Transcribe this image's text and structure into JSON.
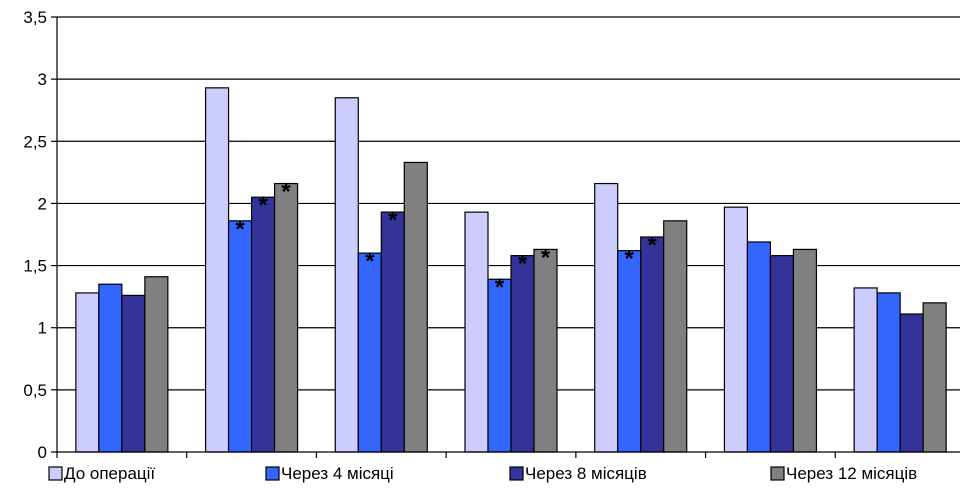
{
  "chart_data": {
    "type": "bar",
    "title": "",
    "xlabel": "",
    "ylabel": "",
    "ylim": [
      0,
      3.5
    ],
    "y_ticks": [
      "0",
      "0,5",
      "1",
      "1,5",
      "2",
      "2,5",
      "3",
      "3,5"
    ],
    "y_tick_values": [
      0,
      0.5,
      1,
      1.5,
      2,
      2.5,
      3,
      3.5
    ],
    "grid": "horizontal",
    "legend_position": "bottom",
    "categories": [
      "",
      "",
      "",
      "",
      "",
      "",
      ""
    ],
    "series": [
      {
        "name": "До операції",
        "color": "#CCCCFF",
        "values": [
          1.28,
          2.93,
          2.85,
          1.93,
          2.16,
          1.97,
          1.32
        ]
      },
      {
        "name": "Через 4 місяці",
        "color": "#3366FF",
        "values": [
          1.35,
          1.86,
          1.6,
          1.39,
          1.62,
          1.69,
          1.28
        ]
      },
      {
        "name": "Через 8 місяців",
        "color": "#333399",
        "values": [
          1.26,
          2.05,
          1.93,
          1.58,
          1.73,
          1.58,
          1.11
        ]
      },
      {
        "name": "Через 12 місяців",
        "color": "#808080",
        "values": [
          1.41,
          2.16,
          2.33,
          1.63,
          1.86,
          1.63,
          1.2
        ]
      }
    ],
    "significance_marker": "*",
    "significance_marks": [
      {
        "category": 1,
        "series": 1
      },
      {
        "category": 1,
        "series": 2
      },
      {
        "category": 1,
        "series": 3
      },
      {
        "category": 2,
        "series": 1
      },
      {
        "category": 2,
        "series": 2
      },
      {
        "category": 3,
        "series": 1
      },
      {
        "category": 3,
        "series": 2
      },
      {
        "category": 3,
        "series": 3
      },
      {
        "category": 4,
        "series": 1
      },
      {
        "category": 4,
        "series": 2
      }
    ]
  }
}
